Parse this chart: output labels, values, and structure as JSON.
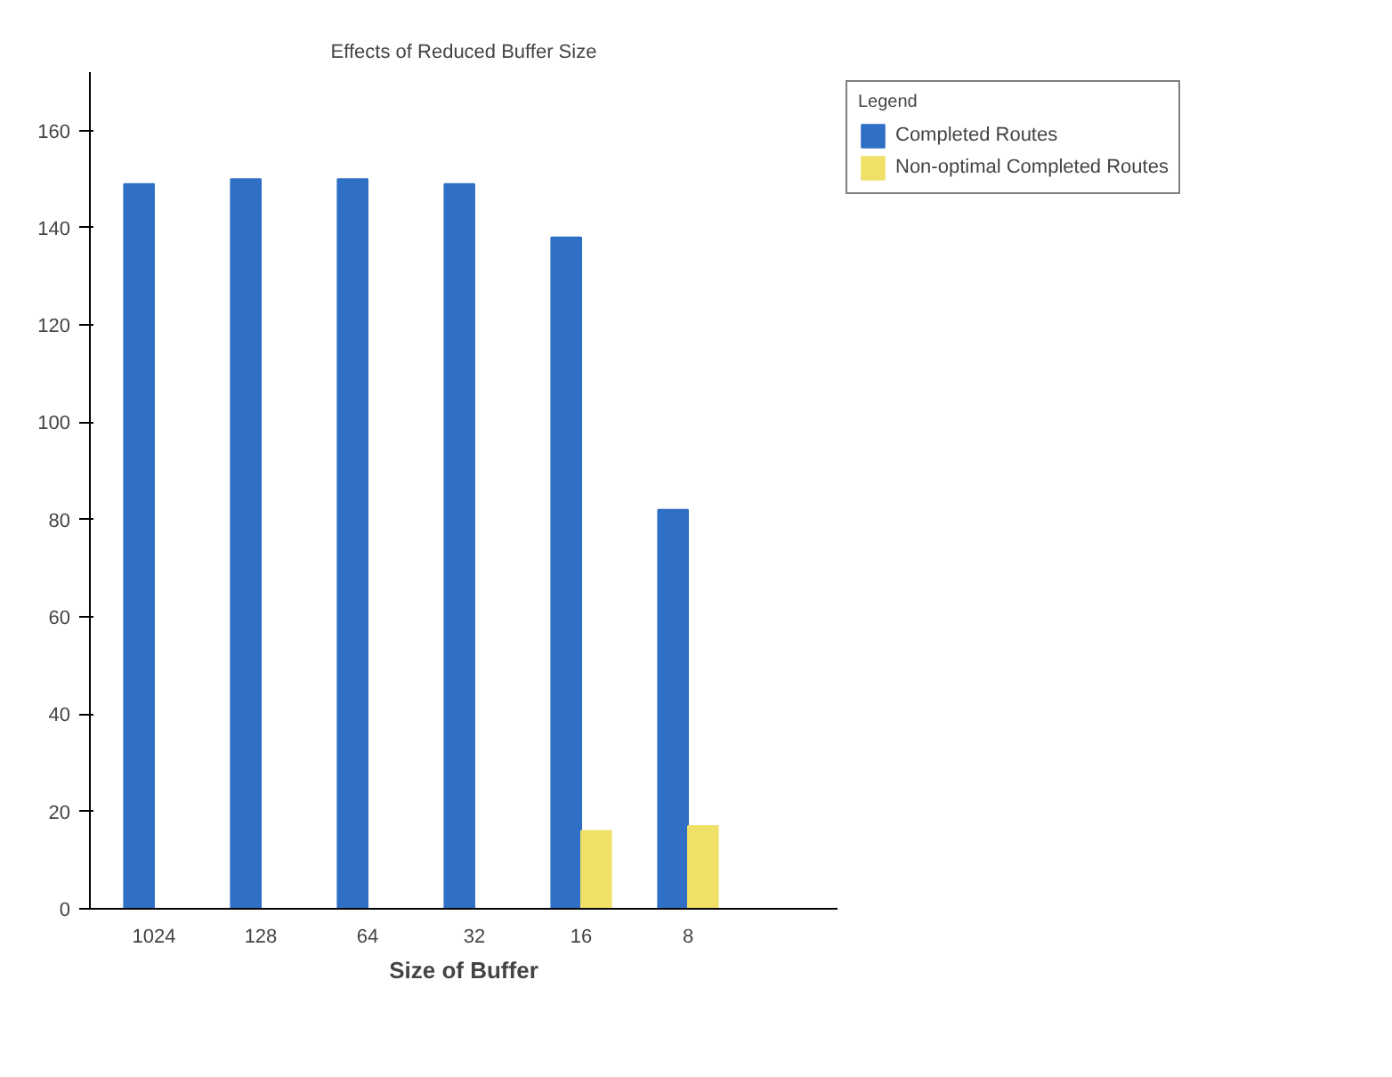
{
  "chart_data": {
    "type": "bar",
    "title": "Effects of Reduced Buffer Size",
    "xlabel": "Size of Buffer",
    "legend_title": "Legend",
    "categories": [
      "1024",
      "128",
      "64",
      "32",
      "16",
      "8"
    ],
    "series": [
      {
        "name": "Completed Routes",
        "color": "#2f6fc6",
        "values": [
          149,
          150,
          150,
          149,
          138,
          82
        ]
      },
      {
        "name": "Non-optimal Completed Routes",
        "color": "#f0e068",
        "values": [
          0,
          0,
          0,
          0,
          16,
          17
        ]
      }
    ],
    "ylim": [
      0,
      172
    ],
    "yticks": [
      0,
      20,
      40,
      60,
      80,
      100,
      120,
      140,
      160
    ],
    "grid": false,
    "legend": "top right"
  }
}
